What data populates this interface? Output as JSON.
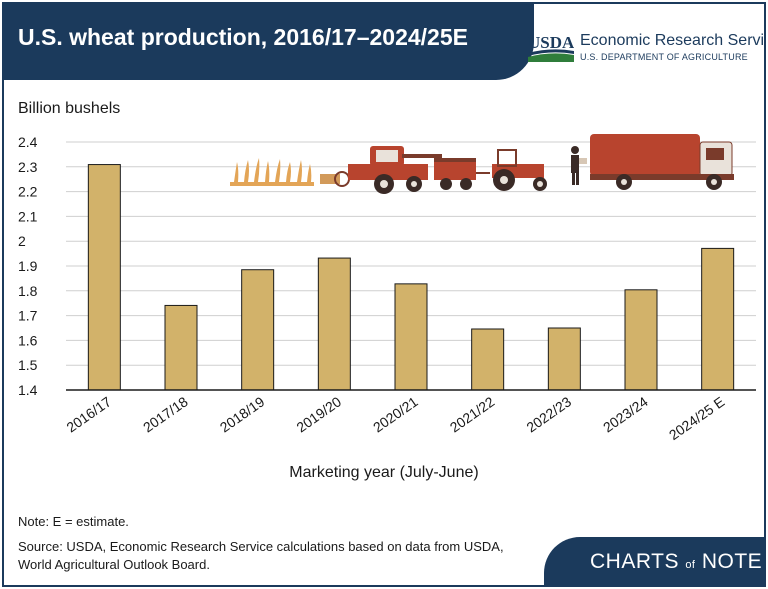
{
  "header": {
    "title": "U.S. wheat production, 2016/17–2024/25E",
    "logo_text": "USDA",
    "org_name": "Economic Research Service",
    "org_dept": "U.S. DEPARTMENT OF AGRICULTURE"
  },
  "footer": {
    "note": "Note: E = estimate.",
    "source": "Source: USDA, Economic Research Service calculations based on data from USDA, World Agricultural Outlook Board.",
    "brand_pre": "CHARTS",
    "brand_of": "of",
    "brand_post": "NOTE"
  },
  "colors": {
    "navy": "#1b3a5c",
    "bar": "#d2b26a",
    "machinery": "#b8442e",
    "wheat": "#e3a557",
    "logo_green": "#2f7d3b"
  },
  "chart_data": {
    "type": "bar",
    "title": "U.S. wheat production, 2016/17–2024/25E",
    "ylabel": "Billion bushels",
    "xlabel": "Marketing year (July-June)",
    "categories": [
      "2016/17",
      "2017/18",
      "2018/19",
      "2019/20",
      "2020/21",
      "2021/22",
      "2022/23",
      "2023/24",
      "2024/25 E"
    ],
    "values": [
      2.309,
      1.741,
      1.885,
      1.932,
      1.828,
      1.646,
      1.65,
      1.804,
      1.971
    ],
    "ylim": [
      1.4,
      2.4
    ],
    "yticks": [
      "1.4",
      "1.5",
      "1.6",
      "1.7",
      "1.8",
      "1.9",
      "2",
      "2.1",
      "2.2",
      "2.3",
      "2.4"
    ],
    "grid": true,
    "legend": "none"
  }
}
